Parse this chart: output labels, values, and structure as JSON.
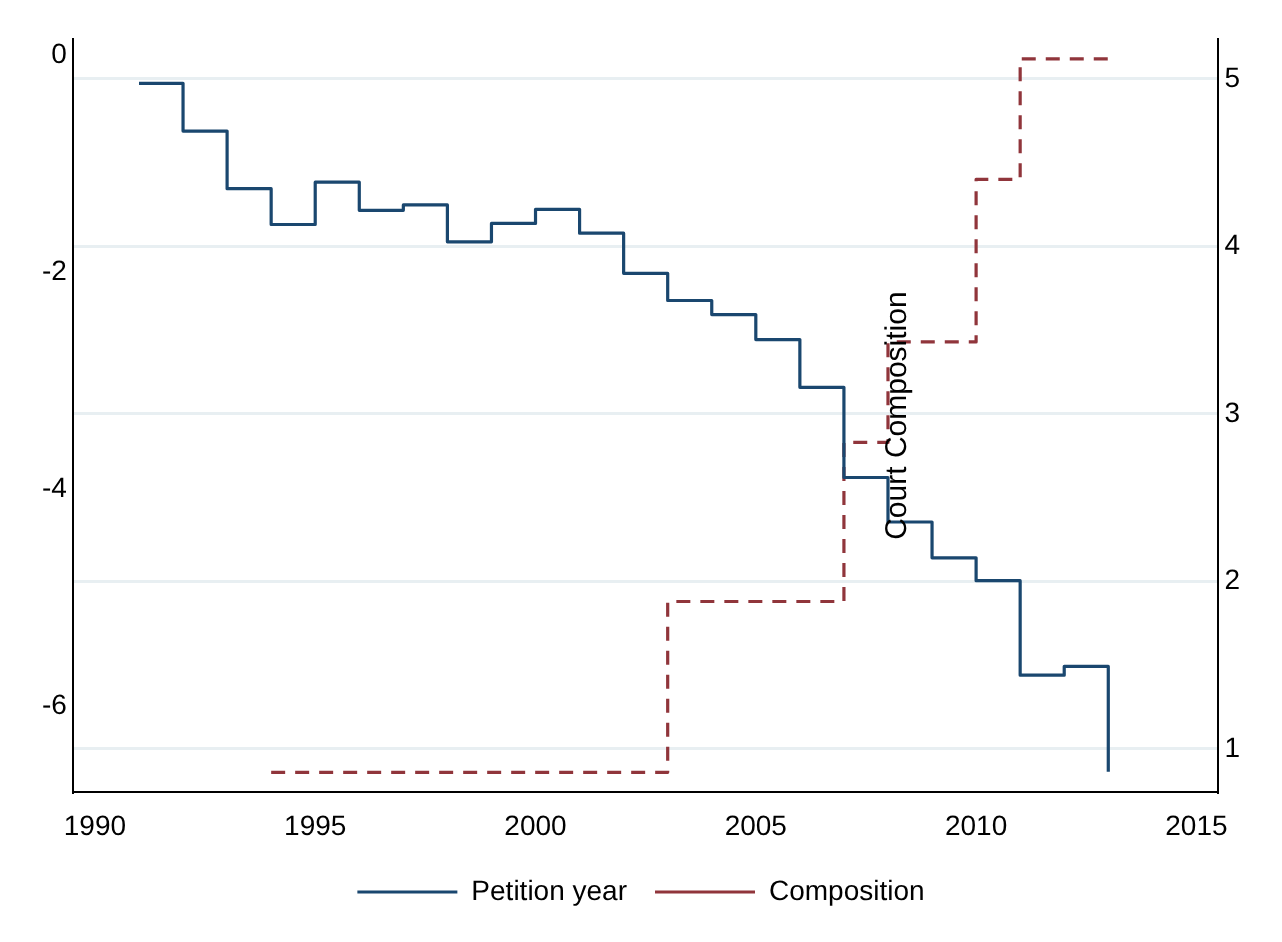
{
  "chart_data": {
    "type": "step",
    "annotations": [
      "Court Composition"
    ],
    "series": [
      {
        "name": "Petition year",
        "color": "#1a476f",
        "line_style": "solid",
        "x": [
          1991,
          1992,
          1993,
          1994,
          1995,
          1996,
          1997,
          1998,
          1999,
          2000,
          2001,
          2002,
          2003,
          2004,
          2005,
          2006,
          2007,
          2008,
          2009,
          2010,
          2011,
          2012,
          2013
        ],
        "values": [
          -0.26,
          -0.7,
          -1.23,
          -1.56,
          -1.17,
          -1.43,
          -1.38,
          -1.72,
          -1.55,
          -1.42,
          -1.64,
          -2.01,
          -2.26,
          -2.39,
          -2.62,
          -3.06,
          -3.89,
          -4.3,
          -4.63,
          -4.84,
          -5.71,
          -5.63,
          -6.6
        ]
      },
      {
        "name": "Composition",
        "color": "#90353b",
        "line_style": "dashed",
        "axis": "y2",
        "x": [
          1994,
          1995,
          1996,
          1997,
          1998,
          1999,
          2000,
          2001,
          2002,
          2003,
          2004,
          2005,
          2006,
          2007,
          2008,
          2009,
          2010,
          2011,
          2012,
          2013
        ],
        "values": [
          0.86,
          0.86,
          0.86,
          0.86,
          0.86,
          0.86,
          0.86,
          0.86,
          0.86,
          1.88,
          1.88,
          1.88,
          1.88,
          2.83,
          3.43,
          3.43,
          4.4,
          5.12,
          5.12,
          5.12
        ]
      }
    ],
    "xlim": [
      1989.5,
      2015.5
    ],
    "xticks": [
      1990,
      1995,
      2000,
      2005,
      2010,
      2015
    ],
    "ylim": [
      -6.79,
      0.15
    ],
    "yticks": [
      -6,
      -4,
      -2,
      0
    ],
    "y2lim": [
      0.74,
      5.24
    ],
    "y2ticks": [
      1,
      2,
      3,
      4,
      5
    ],
    "grid": "y",
    "legend": "bottom",
    "marker": "none"
  }
}
